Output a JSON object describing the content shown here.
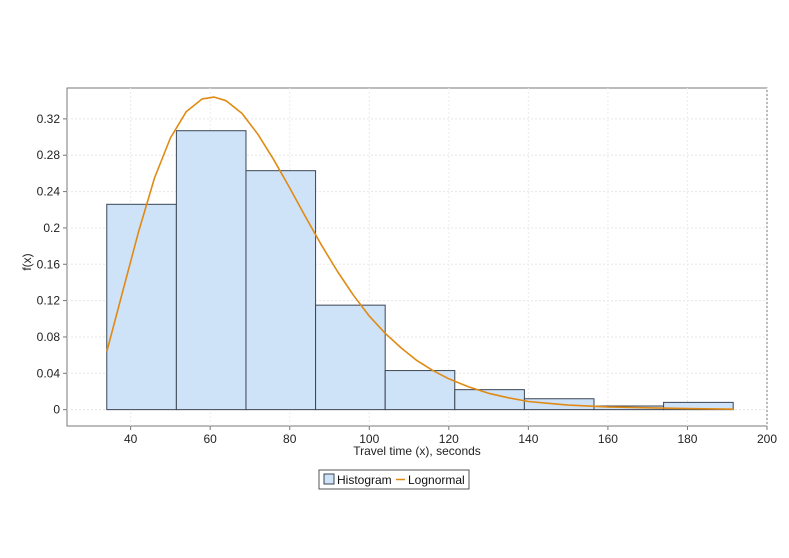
{
  "chart_data": {
    "type": "bar",
    "title": "",
    "xlabel": "Travel time (x), seconds",
    "ylabel": "f(x)",
    "xlim": [
      24,
      200
    ],
    "ylim": [
      -0.018,
      0.354
    ],
    "xticks": [
      40,
      60,
      80,
      100,
      120,
      140,
      160,
      180,
      200
    ],
    "yticks": [
      0,
      0.04,
      0.08,
      0.12,
      0.16,
      0.2,
      0.24,
      0.28,
      0.32
    ],
    "ytick_labels": [
      "0",
      "0.04",
      "0.08",
      "0.12",
      "0.16",
      "0.2",
      "0.24",
      "0.28",
      "0.32"
    ],
    "grid": true,
    "legend_position": "bottom-center",
    "series": [
      {
        "name": "Histogram",
        "kind": "histogram",
        "color": "#cfe3f8",
        "edge_color": "#3a4654",
        "bins": [
          {
            "x0": 34,
            "x1": 51.5,
            "value": 0.226
          },
          {
            "x0": 51.5,
            "x1": 69,
            "value": 0.307
          },
          {
            "x0": 69,
            "x1": 86.5,
            "value": 0.263
          },
          {
            "x0": 86.5,
            "x1": 104,
            "value": 0.115
          },
          {
            "x0": 104,
            "x1": 121.5,
            "value": 0.043
          },
          {
            "x0": 121.5,
            "x1": 139,
            "value": 0.022
          },
          {
            "x0": 139,
            "x1": 156.5,
            "value": 0.012
          },
          {
            "x0": 156.5,
            "x1": 174,
            "value": 0.004
          },
          {
            "x0": 174,
            "x1": 191.5,
            "value": 0.008
          }
        ]
      },
      {
        "name": "Lognormal",
        "kind": "line",
        "color": "#e08a14",
        "x": [
          34,
          38,
          42,
          46,
          50,
          54,
          58,
          61,
          64,
          68,
          72,
          76,
          80,
          84,
          88,
          92,
          96,
          100,
          104,
          108,
          112,
          116,
          120,
          125,
          130,
          135,
          140,
          145,
          150,
          160,
          170,
          180,
          191.5
        ],
        "y": [
          0.064,
          0.13,
          0.196,
          0.255,
          0.299,
          0.328,
          0.342,
          0.344,
          0.34,
          0.326,
          0.303,
          0.275,
          0.244,
          0.212,
          0.181,
          0.152,
          0.126,
          0.103,
          0.084,
          0.068,
          0.054,
          0.043,
          0.034,
          0.025,
          0.018,
          0.013,
          0.009,
          0.007,
          0.005,
          0.003,
          0.002,
          0.0012,
          0.0005
        ]
      }
    ]
  }
}
